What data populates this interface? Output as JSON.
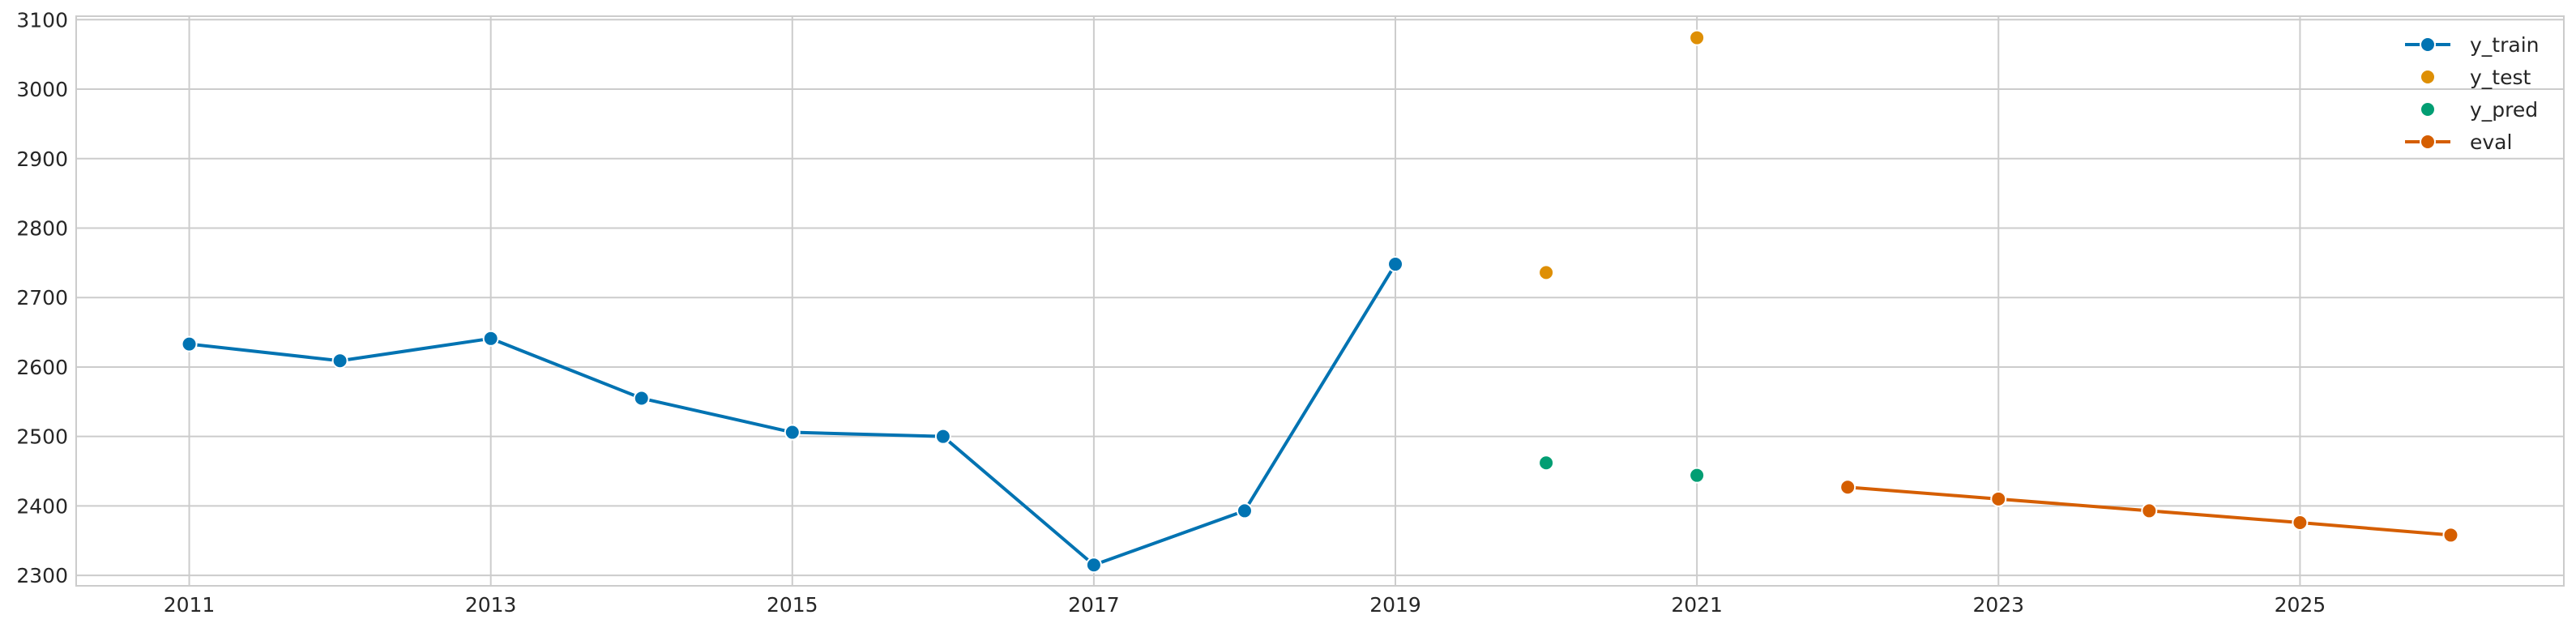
{
  "chart_data": {
    "type": "line",
    "title": "",
    "xlabel": "",
    "ylabel": "",
    "xlim": [
      2010.25,
      2026.75
    ],
    "ylim": [
      2285,
      3105
    ],
    "x_ticks": [
      2011,
      2013,
      2015,
      2017,
      2019,
      2021,
      2023,
      2025
    ],
    "y_ticks": [
      2300,
      2400,
      2500,
      2600,
      2700,
      2800,
      2900,
      3000,
      3100
    ],
    "grid": true,
    "legend_position": "top-right",
    "series": [
      {
        "name": "y_train",
        "style": "line-marker",
        "color": "#0173b2",
        "points": [
          {
            "x": 2011,
            "y": 2633
          },
          {
            "x": 2012,
            "y": 2609
          },
          {
            "x": 2013,
            "y": 2641
          },
          {
            "x": 2014,
            "y": 2555
          },
          {
            "x": 2015,
            "y": 2506
          },
          {
            "x": 2016,
            "y": 2500
          },
          {
            "x": 2017,
            "y": 2315
          },
          {
            "x": 2018,
            "y": 2393
          },
          {
            "x": 2019,
            "y": 2748
          }
        ]
      },
      {
        "name": "y_test",
        "style": "marker",
        "color": "#de8f05",
        "points": [
          {
            "x": 2020,
            "y": 2736
          },
          {
            "x": 2021,
            "y": 3074
          }
        ]
      },
      {
        "name": "y_pred",
        "style": "marker",
        "color": "#029e73",
        "points": [
          {
            "x": 2020,
            "y": 2462
          },
          {
            "x": 2021,
            "y": 2444
          }
        ]
      },
      {
        "name": "eval",
        "style": "line-marker",
        "color": "#d55e00",
        "points": [
          {
            "x": 2022,
            "y": 2427
          },
          {
            "x": 2023,
            "y": 2410
          },
          {
            "x": 2024,
            "y": 2393
          },
          {
            "x": 2025,
            "y": 2376
          },
          {
            "x": 2026,
            "y": 2358
          }
        ]
      }
    ]
  }
}
